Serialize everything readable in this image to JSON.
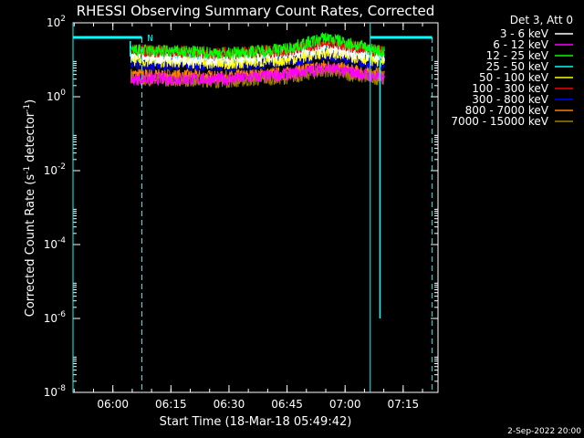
{
  "chart_data": {
    "type": "line",
    "title": "RHESSI Observing Summary Count Rates, Corrected",
    "xlabel": "Start Time (18-Mar-18 05:49:42)",
    "ylabel_main": "Corrected Count Rate (s",
    "ylabel_sup1": "-1",
    "ylabel_mid": " detector",
    "ylabel_sup2": "-1",
    "ylabel_end": ")",
    "y_scale": "log",
    "ylim": [
      1e-08,
      100
    ],
    "xlim": [
      "05:49:42",
      "07:24:00"
    ],
    "x_ticks": [
      "06:00",
      "06:15",
      "06:30",
      "06:45",
      "07:00",
      "07:15"
    ],
    "y_ticks": [
      {
        "base": "10",
        "exp": "-8",
        "value": 1e-08
      },
      {
        "base": "10",
        "exp": "-6",
        "value": 1e-06
      },
      {
        "base": "10",
        "exp": "-4",
        "value": 0.0001
      },
      {
        "base": "10",
        "exp": "-2",
        "value": 0.01
      },
      {
        "base": "10",
        "exp": "0",
        "value": 1
      },
      {
        "base": "10",
        "exp": "2",
        "value": 100
      }
    ],
    "data_start": "06:04:40",
    "data_end": "07:10:15",
    "series": [
      {
        "name": "3 - 6 keV",
        "color": "#ffffff",
        "points": [
          [
            "06:05",
            12
          ],
          [
            "06:15",
            11
          ],
          [
            "06:30",
            10
          ],
          [
            "06:45",
            14
          ],
          [
            "06:55",
            20
          ],
          [
            "07:05",
            14
          ],
          [
            "07:10",
            12
          ]
        ]
      },
      {
        "name": "6 - 12 keV",
        "color": "#ff00ff",
        "points": [
          [
            "06:05",
            3
          ],
          [
            "06:15",
            3
          ],
          [
            "06:30",
            3
          ],
          [
            "06:45",
            4
          ],
          [
            "06:55",
            6
          ],
          [
            "07:05",
            4
          ],
          [
            "07:10",
            3
          ]
        ]
      },
      {
        "name": "12 - 25 keV",
        "color": "#00ff00",
        "points": [
          [
            "06:05",
            18
          ],
          [
            "06:15",
            17
          ],
          [
            "06:30",
            15
          ],
          [
            "06:45",
            20
          ],
          [
            "06:55",
            40
          ],
          [
            "07:05",
            22
          ],
          [
            "07:10",
            16
          ]
        ]
      },
      {
        "name": "25 - 50 keV",
        "color": "#00ffff",
        "points": [
          [
            "06:05",
            12
          ],
          [
            "06:15",
            11
          ],
          [
            "06:30",
            10
          ],
          [
            "06:45",
            13
          ],
          [
            "06:55",
            22
          ],
          [
            "07:05",
            14
          ],
          [
            "07:10",
            11
          ]
        ]
      },
      {
        "name": "50 - 100 keV",
        "color": "#ffff00",
        "points": [
          [
            "06:05",
            10
          ],
          [
            "06:15",
            9
          ],
          [
            "06:30",
            8
          ],
          [
            "06:45",
            10
          ],
          [
            "06:55",
            16
          ],
          [
            "07:05",
            11
          ],
          [
            "07:10",
            9
          ]
        ]
      },
      {
        "name": "100 - 300 keV",
        "color": "#ff0000",
        "points": [
          [
            "06:05",
            18
          ],
          [
            "06:15",
            17
          ],
          [
            "06:30",
            15
          ],
          [
            "06:45",
            18
          ],
          [
            "06:55",
            30
          ],
          [
            "07:05",
            20
          ],
          [
            "07:10",
            16
          ]
        ]
      },
      {
        "name": "300 - 800 keV",
        "color": "#0000ff",
        "points": [
          [
            "06:05",
            8
          ],
          [
            "06:15",
            7.5
          ],
          [
            "06:30",
            7
          ],
          [
            "06:45",
            9
          ],
          [
            "06:55",
            14
          ],
          [
            "07:05",
            9
          ],
          [
            "07:10",
            8
          ]
        ]
      },
      {
        "name": "800 - 7000 keV",
        "color": "#ff8000",
        "points": [
          [
            "06:05",
            4
          ],
          [
            "06:15",
            3.8
          ],
          [
            "06:30",
            3.5
          ],
          [
            "06:45",
            4.5
          ],
          [
            "06:55",
            7
          ],
          [
            "07:05",
            4.5
          ],
          [
            "07:10",
            4
          ]
        ]
      },
      {
        "name": "7000 - 15000 keV",
        "color": "#a08000",
        "points": [
          [
            "06:05",
            3
          ],
          [
            "06:15",
            2.8
          ],
          [
            "06:30",
            2.6
          ],
          [
            "06:45",
            3.2
          ],
          [
            "06:55",
            5
          ],
          [
            "07:05",
            3.3
          ],
          [
            "07:10",
            3
          ]
        ]
      }
    ],
    "legend_title": "Det 3, Att 0",
    "legend_position": "top-right outside",
    "night_bars_color": "#00ffff",
    "night_intervals": [
      [
        "05:49:42",
        "06:07:30"
      ],
      [
        "07:06:30",
        "07:22:30"
      ]
    ],
    "saa_label": "N",
    "footer_date": "2-Sep-2022 20:00"
  }
}
